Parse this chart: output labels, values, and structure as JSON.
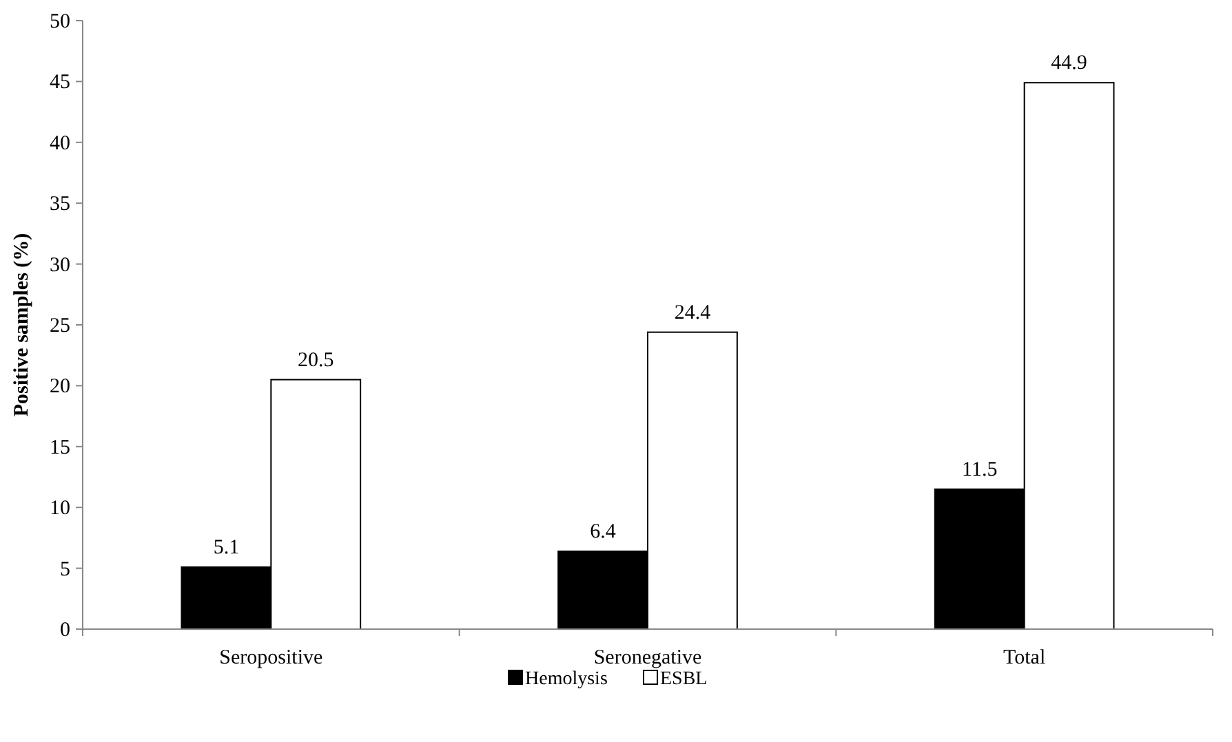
{
  "chart_data": {
    "type": "bar",
    "ylabel": "Positive samples (%)",
    "categories": [
      "Seropositive",
      "Seronegative",
      "Total"
    ],
    "series": [
      {
        "name": "Hemolysis",
        "color": "#000000",
        "values": [
          5.1,
          6.4,
          11.5
        ]
      },
      {
        "name": "ESBL",
        "color": "#ffffff",
        "values": [
          20.5,
          24.4,
          44.9
        ]
      }
    ],
    "ylim": [
      0,
      50
    ],
    "yticks": [
      0,
      5,
      10,
      15,
      20,
      25,
      30,
      35,
      40,
      45,
      50
    ],
    "data_labels": true,
    "legend": "bottom",
    "grid": false
  }
}
